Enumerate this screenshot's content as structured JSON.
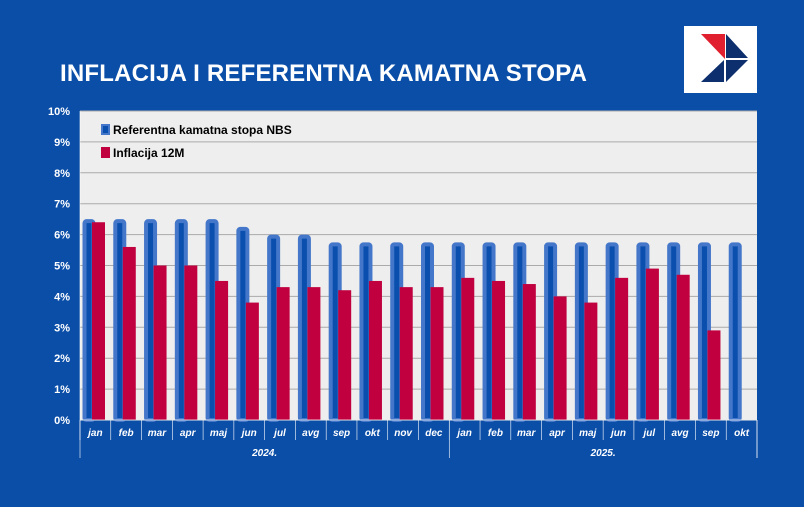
{
  "title": "INFLACIJA I REFERENTNA KAMATNA STOPA",
  "colors": {
    "background": "#0b4ea8",
    "plot_bg": "#eeeeee",
    "rate_fill": "#0a4fad",
    "rate_border": "#4477c9",
    "inflation": "#c0003f",
    "logo_red": "#e0202e",
    "logo_navy": "#0d2f6e"
  },
  "chart_data": {
    "type": "bar",
    "title": "INFLACIJA I REFERENTNA KAMATNA STOPA",
    "xlabel": "",
    "ylabel": "",
    "ylim": [
      0,
      10
    ],
    "yticks": [
      "0%",
      "1%",
      "2%",
      "3%",
      "4%",
      "5%",
      "6%",
      "7%",
      "8%",
      "9%",
      "10%"
    ],
    "grid": true,
    "legend_position": "top-left",
    "categories": [
      "jan",
      "feb",
      "mar",
      "apr",
      "maj",
      "jun",
      "jul",
      "avg",
      "sep",
      "okt",
      "nov",
      "dec",
      "jan",
      "feb",
      "mar",
      "apr",
      "maj",
      "jun",
      "jul",
      "avg",
      "sep",
      "okt"
    ],
    "groups": [
      {
        "label": "2024.",
        "count": 12
      },
      {
        "label": "2025.",
        "count": 10
      }
    ],
    "series": [
      {
        "name": "Referentna kamatna stopa NBS",
        "values": [
          6.5,
          6.5,
          6.5,
          6.5,
          6.5,
          6.25,
          6.0,
          6.0,
          5.75,
          5.75,
          5.75,
          5.75,
          5.75,
          5.75,
          5.75,
          5.75,
          5.75,
          5.75,
          5.75,
          5.75,
          5.75,
          5.75
        ]
      },
      {
        "name": "Inflacija 12M",
        "values": [
          6.4,
          5.6,
          5.0,
          5.0,
          4.5,
          3.8,
          4.3,
          4.3,
          4.2,
          4.5,
          4.3,
          4.3,
          4.6,
          4.5,
          4.4,
          4.0,
          3.8,
          4.6,
          4.9,
          4.7,
          2.9,
          null
        ]
      }
    ]
  }
}
